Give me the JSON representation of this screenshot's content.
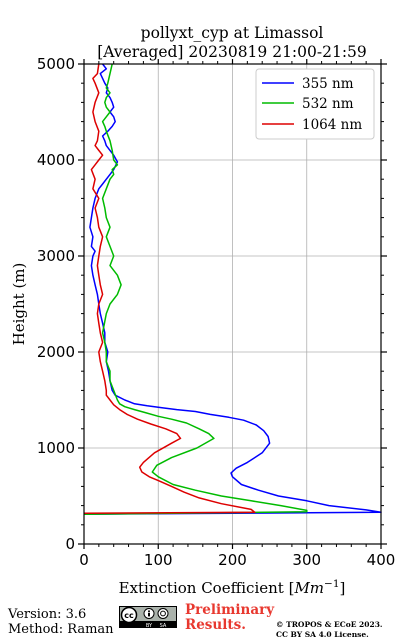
{
  "chart_data": {
    "type": "line",
    "title_line1": "pollyxt_cyp at Limassol",
    "title_line2": "[Averaged] 20230819 21:00-21:59",
    "xlabel": "Extinction Coefficient [",
    "xlabel_unit": "Mm",
    "xlabel_exp": "−1",
    "xlabel_close": "]",
    "ylabel": "Height (m)",
    "xlim": [
      0,
      400
    ],
    "ylim": [
      0,
      5000
    ],
    "xticks": [
      "0",
      "100",
      "200",
      "300",
      "400"
    ],
    "yticks": [
      "0",
      "1000",
      "2000",
      "3000",
      "4000",
      "5000"
    ],
    "grid": true,
    "legend_position": "top-right",
    "series": [
      {
        "name": "355 nm",
        "color": "#0000ff",
        "x": [
          0,
          400,
          380,
          330,
          300,
          262,
          235,
          212,
          200,
          198,
          205,
          220,
          240,
          250,
          248,
          242,
          232,
          215,
          195,
          170,
          150,
          125,
          105,
          85,
          68,
          55,
          42,
          38,
          35,
          33,
          30,
          32,
          28,
          28,
          25,
          22,
          20,
          18,
          15,
          12,
          10,
          12,
          15,
          10,
          12,
          8,
          10,
          12,
          15,
          20,
          25,
          30,
          35,
          40,
          45,
          40,
          35,
          30,
          28,
          25,
          32,
          38,
          42,
          40,
          35,
          40,
          38,
          35,
          30,
          32,
          28,
          25,
          22,
          30,
          25
        ],
        "y": [
          310,
          330,
          355,
          400,
          450,
          500,
          560,
          620,
          700,
          740,
          790,
          850,
          950,
          1050,
          1120,
          1180,
          1240,
          1290,
          1320,
          1350,
          1380,
          1400,
          1420,
          1440,
          1460,
          1500,
          1550,
          1600,
          1700,
          1800,
          1900,
          2000,
          2100,
          2200,
          2300,
          2400,
          2500,
          2600,
          2700,
          2800,
          2900,
          3000,
          3050,
          3100,
          3200,
          3300,
          3400,
          3500,
          3600,
          3700,
          3750,
          3800,
          3850,
          3900,
          3980,
          4050,
          4100,
          4150,
          4200,
          4250,
          4300,
          4350,
          4400,
          4450,
          4500,
          4550,
          4600,
          4650,
          4700,
          4750,
          4800,
          4850,
          4900,
          4950,
          5000
        ]
      },
      {
        "name": "532 nm",
        "color": "#00bb00",
        "x": [
          0,
          300,
          300,
          265,
          225,
          185,
          150,
          120,
          100,
          92,
          98,
          118,
          152,
          175,
          168,
          155,
          138,
          118,
          100,
          82,
          68,
          55,
          48,
          45,
          40,
          35,
          35,
          30,
          30,
          28,
          25,
          30,
          35,
          45,
          50,
          45,
          35,
          40,
          35,
          30,
          35,
          30,
          28,
          25,
          30,
          35,
          40,
          38,
          45,
          40,
          38,
          35,
          30,
          28,
          25,
          30,
          35,
          30,
          28,
          30,
          35,
          30,
          32,
          35,
          38
        ],
        "y": [
          310,
          335,
          350,
          400,
          450,
          500,
          560,
          620,
          700,
          750,
          820,
          900,
          1000,
          1100,
          1150,
          1200,
          1260,
          1300,
          1330,
          1370,
          1400,
          1430,
          1460,
          1500,
          1600,
          1700,
          1800,
          1900,
          2000,
          2100,
          2200,
          2400,
          2500,
          2600,
          2700,
          2800,
          2900,
          3000,
          3100,
          3200,
          3300,
          3400,
          3500,
          3600,
          3700,
          3800,
          3850,
          3900,
          3950,
          4000,
          4100,
          4200,
          4300,
          4350,
          4400,
          4450,
          4500,
          4550,
          4600,
          4650,
          4700,
          4750,
          4800,
          4900,
          5000
        ]
      },
      {
        "name": "1064 nm",
        "color": "#dd0000",
        "x": [
          0,
          230,
          225,
          185,
          155,
          135,
          118,
          100,
          88,
          78,
          75,
          80,
          95,
          118,
          130,
          125,
          110,
          90,
          72,
          58,
          48,
          40,
          35,
          30,
          30,
          28,
          25,
          22,
          20,
          25,
          22,
          20,
          18,
          20,
          25,
          22,
          20,
          18,
          20,
          22,
          25,
          20,
          18,
          15,
          20,
          12,
          15,
          10,
          15,
          20,
          25,
          20,
          15,
          18,
          20,
          15,
          12,
          15,
          20,
          15,
          12,
          18,
          20
        ],
        "y": [
          320,
          330,
          360,
          420,
          480,
          540,
          600,
          660,
          700,
          750,
          800,
          850,
          950,
          1050,
          1100,
          1150,
          1200,
          1250,
          1300,
          1350,
          1400,
          1450,
          1500,
          1550,
          1600,
          1700,
          1800,
          1900,
          2000,
          2100,
          2200,
          2300,
          2400,
          2500,
          2600,
          2700,
          2800,
          2900,
          3000,
          3100,
          3200,
          3300,
          3400,
          3500,
          3600,
          3700,
          3800,
          3900,
          3950,
          4000,
          4050,
          4100,
          4150,
          4200,
          4300,
          4400,
          4500,
          4600,
          4700,
          4800,
          4850,
          4900,
          5000
        ]
      }
    ]
  },
  "footer": {
    "version": "Version: 3.6",
    "method": "Method: Raman",
    "preliminary_line1": "Preliminary",
    "preliminary_line2": "Results.",
    "license_line1": "© TROPOS & ECoE 2023.",
    "license_line2": "CC BY SA 4.0 License.",
    "cc_logo_text": "cc",
    "cc_logo_by": "BY",
    "cc_logo_sa": "SA",
    "prelim_color": "#e8382f"
  }
}
